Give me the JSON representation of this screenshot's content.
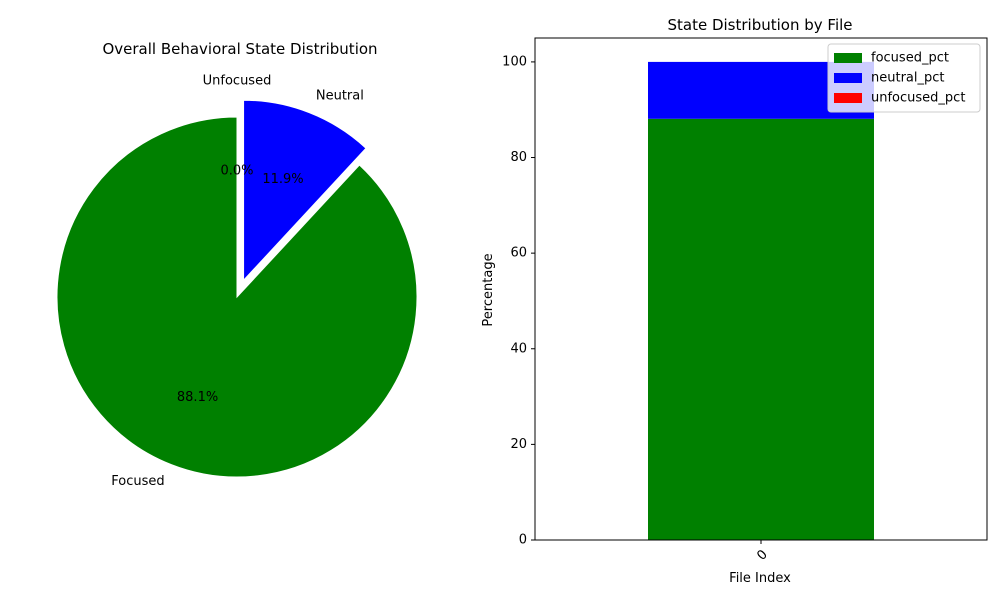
{
  "chart_data": [
    {
      "type": "pie",
      "title": "Overall Behavioral State Distribution",
      "slices": [
        {
          "label": "Focused",
          "value": 88.1,
          "pct_label": "88.1%",
          "color": "#008000",
          "explode": false
        },
        {
          "label": "Neutral",
          "value": 11.9,
          "pct_label": "11.9%",
          "color": "#0000ff",
          "explode": true
        },
        {
          "label": "Unfocused",
          "value": 0.0,
          "pct_label": "0.0%",
          "color": "#ff0000",
          "explode": true
        }
      ],
      "start_angle_deg": 90,
      "direction": "counterclockwise"
    },
    {
      "type": "bar",
      "stacked": true,
      "title": "State Distribution by File",
      "xlabel": "File Index",
      "ylabel": "Percentage",
      "categories": [
        "0"
      ],
      "series": [
        {
          "name": "focused_pct",
          "values": [
            88.1
          ],
          "color": "#008000"
        },
        {
          "name": "neutral_pct",
          "values": [
            11.9
          ],
          "color": "#0000ff"
        },
        {
          "name": "unfocused_pct",
          "values": [
            0.0
          ],
          "color": "#ff0000"
        }
      ],
      "ylim": [
        0,
        105
      ],
      "yticks": [
        0,
        20,
        40,
        60,
        80,
        100
      ],
      "legend_position": "top-right",
      "grid": false
    }
  ]
}
